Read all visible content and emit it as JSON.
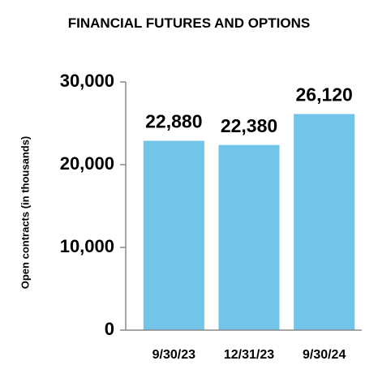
{
  "chart_data": {
    "type": "bar",
    "title": "FINANCIAL FUTURES AND OPTIONS",
    "y_label": "Open contracts (in thousands)",
    "categories": [
      "9/30/23",
      "12/31/23",
      "9/30/24"
    ],
    "values": [
      22880,
      22380,
      26120
    ],
    "value_labels": [
      "22,880",
      "22,380",
      "26,120"
    ],
    "color": "#72c4e8",
    "ylim": [
      0,
      30000
    ],
    "yticks": [
      0,
      {
        "value": 10000,
        "label": "10,000"
      },
      {
        "value": 20000,
        "label": "20,000"
      },
      {
        "value": 30000,
        "label": "30,000"
      }
    ],
    "grid": false
  }
}
